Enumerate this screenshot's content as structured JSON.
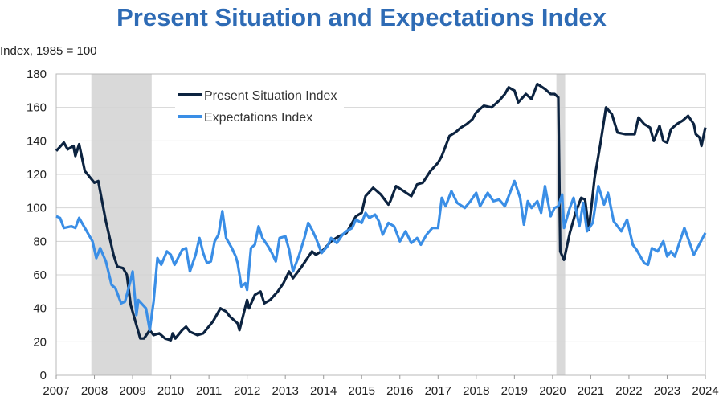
{
  "chart_data": {
    "type": "line",
    "title": "Present Situation and Expectations Index",
    "ylabel": "Index, 1985 = 100",
    "xlabel": "",
    "ylim": [
      0,
      180
    ],
    "xlim": [
      2007,
      2024
    ],
    "yticks": [
      "0",
      "20",
      "40",
      "60",
      "80",
      "100",
      "120",
      "140",
      "160",
      "180"
    ],
    "xticks": [
      "2007",
      "2008",
      "2009",
      "2010",
      "2011",
      "2012",
      "2013",
      "2014",
      "2015",
      "2016",
      "2017",
      "2018",
      "2019",
      "2020",
      "2021",
      "2022",
      "2023",
      "2024"
    ],
    "grid": true,
    "legend_position": "top-left",
    "recessions": [
      [
        2007.92,
        2009.5
      ],
      [
        2020.1,
        2020.33
      ]
    ],
    "series": [
      {
        "name": "Present Situation Index",
        "color": "#0c2340",
        "points": [
          [
            2007.0,
            134
          ],
          [
            2007.2,
            139
          ],
          [
            2007.3,
            135
          ],
          [
            2007.45,
            137
          ],
          [
            2007.5,
            131
          ],
          [
            2007.6,
            138
          ],
          [
            2007.75,
            122
          ],
          [
            2008.0,
            115
          ],
          [
            2008.1,
            116
          ],
          [
            2008.3,
            92
          ],
          [
            2008.5,
            72
          ],
          [
            2008.6,
            65
          ],
          [
            2008.75,
            64
          ],
          [
            2008.85,
            60
          ],
          [
            2008.95,
            42
          ],
          [
            2009.1,
            30
          ],
          [
            2009.2,
            22
          ],
          [
            2009.3,
            22
          ],
          [
            2009.45,
            27
          ],
          [
            2009.55,
            24
          ],
          [
            2009.7,
            25
          ],
          [
            2009.85,
            22
          ],
          [
            2010.0,
            21
          ],
          [
            2010.05,
            25
          ],
          [
            2010.12,
            22
          ],
          [
            2010.3,
            27
          ],
          [
            2010.4,
            29
          ],
          [
            2010.5,
            26
          ],
          [
            2010.7,
            24
          ],
          [
            2010.85,
            25
          ],
          [
            2011.1,
            32
          ],
          [
            2011.3,
            40
          ],
          [
            2011.45,
            38
          ],
          [
            2011.55,
            35
          ],
          [
            2011.75,
            31
          ],
          [
            2011.8,
            27
          ],
          [
            2012.0,
            45
          ],
          [
            2012.05,
            40
          ],
          [
            2012.2,
            48
          ],
          [
            2012.35,
            50
          ],
          [
            2012.45,
            43
          ],
          [
            2012.6,
            45
          ],
          [
            2012.8,
            50
          ],
          [
            2012.95,
            55
          ],
          [
            2013.1,
            62
          ],
          [
            2013.2,
            58
          ],
          [
            2013.4,
            64
          ],
          [
            2013.7,
            74
          ],
          [
            2013.8,
            72
          ],
          [
            2014.0,
            75
          ],
          [
            2014.2,
            80
          ],
          [
            2014.4,
            83
          ],
          [
            2014.6,
            85
          ],
          [
            2014.85,
            95
          ],
          [
            2015.0,
            97
          ],
          [
            2015.1,
            107
          ],
          [
            2015.3,
            112
          ],
          [
            2015.5,
            108
          ],
          [
            2015.7,
            102
          ],
          [
            2015.75,
            104
          ],
          [
            2015.9,
            113
          ],
          [
            2016.1,
            110
          ],
          [
            2016.3,
            107
          ],
          [
            2016.45,
            114
          ],
          [
            2016.6,
            115
          ],
          [
            2016.8,
            122
          ],
          [
            2017.0,
            127
          ],
          [
            2017.1,
            131
          ],
          [
            2017.3,
            143
          ],
          [
            2017.45,
            145
          ],
          [
            2017.6,
            148
          ],
          [
            2017.75,
            150
          ],
          [
            2017.9,
            153
          ],
          [
            2018.0,
            157
          ],
          [
            2018.2,
            161
          ],
          [
            2018.4,
            160
          ],
          [
            2018.6,
            164
          ],
          [
            2018.75,
            168
          ],
          [
            2018.85,
            172
          ],
          [
            2019.0,
            170
          ],
          [
            2019.1,
            163
          ],
          [
            2019.3,
            168
          ],
          [
            2019.45,
            165
          ],
          [
            2019.6,
            174
          ],
          [
            2019.8,
            171
          ],
          [
            2019.95,
            168
          ],
          [
            2020.05,
            168
          ],
          [
            2020.15,
            166
          ],
          [
            2020.2,
            74
          ],
          [
            2020.3,
            69
          ],
          [
            2020.45,
            85
          ],
          [
            2020.6,
            97
          ],
          [
            2020.75,
            106
          ],
          [
            2020.85,
            105
          ],
          [
            2020.95,
            87
          ],
          [
            2021.1,
            118
          ],
          [
            2021.25,
            138
          ],
          [
            2021.4,
            160
          ],
          [
            2021.55,
            156
          ],
          [
            2021.7,
            145
          ],
          [
            2021.9,
            144
          ],
          [
            2022.15,
            144
          ],
          [
            2022.25,
            154
          ],
          [
            2022.4,
            150
          ],
          [
            2022.55,
            148
          ],
          [
            2022.65,
            140
          ],
          [
            2022.8,
            149
          ],
          [
            2022.9,
            140
          ],
          [
            2023.0,
            139
          ],
          [
            2023.1,
            147
          ],
          [
            2023.25,
            150
          ],
          [
            2023.4,
            152
          ],
          [
            2023.55,
            155
          ],
          [
            2023.7,
            150
          ],
          [
            2023.75,
            144
          ],
          [
            2023.85,
            142
          ],
          [
            2023.9,
            137
          ],
          [
            2024.0,
            148
          ]
        ]
      },
      {
        "name": "Expectations Index",
        "color": "#3a8ee6",
        "points": [
          [
            2007.0,
            95
          ],
          [
            2007.1,
            94
          ],
          [
            2007.2,
            88
          ],
          [
            2007.4,
            89
          ],
          [
            2007.5,
            88
          ],
          [
            2007.6,
            94
          ],
          [
            2007.8,
            86
          ],
          [
            2007.95,
            80
          ],
          [
            2008.05,
            70
          ],
          [
            2008.15,
            76
          ],
          [
            2008.3,
            68
          ],
          [
            2008.45,
            54
          ],
          [
            2008.55,
            52
          ],
          [
            2008.7,
            43
          ],
          [
            2008.8,
            44
          ],
          [
            2008.95,
            57
          ],
          [
            2009.0,
            62
          ],
          [
            2009.1,
            36
          ],
          [
            2009.15,
            45
          ],
          [
            2009.35,
            40
          ],
          [
            2009.45,
            27
          ],
          [
            2009.55,
            44
          ],
          [
            2009.65,
            70
          ],
          [
            2009.75,
            66
          ],
          [
            2009.9,
            74
          ],
          [
            2010.0,
            72
          ],
          [
            2010.1,
            66
          ],
          [
            2010.3,
            75
          ],
          [
            2010.4,
            76
          ],
          [
            2010.5,
            62
          ],
          [
            2010.65,
            72
          ],
          [
            2010.75,
            82
          ],
          [
            2010.85,
            73
          ],
          [
            2010.95,
            67
          ],
          [
            2011.05,
            68
          ],
          [
            2011.15,
            80
          ],
          [
            2011.25,
            84
          ],
          [
            2011.35,
            98
          ],
          [
            2011.45,
            82
          ],
          [
            2011.6,
            76
          ],
          [
            2011.7,
            71
          ],
          [
            2011.75,
            67
          ],
          [
            2011.85,
            53
          ],
          [
            2011.95,
            55
          ],
          [
            2012.0,
            51
          ],
          [
            2012.1,
            76
          ],
          [
            2012.2,
            78
          ],
          [
            2012.3,
            89
          ],
          [
            2012.4,
            82
          ],
          [
            2012.55,
            77
          ],
          [
            2012.65,
            73
          ],
          [
            2012.75,
            68
          ],
          [
            2012.85,
            82
          ],
          [
            2013.0,
            83
          ],
          [
            2013.1,
            75
          ],
          [
            2013.2,
            62
          ],
          [
            2013.35,
            71
          ],
          [
            2013.5,
            82
          ],
          [
            2013.6,
            91
          ],
          [
            2013.7,
            87
          ],
          [
            2013.8,
            82
          ],
          [
            2013.95,
            73
          ],
          [
            2014.1,
            77
          ],
          [
            2014.2,
            82
          ],
          [
            2014.35,
            79
          ],
          [
            2014.5,
            84
          ],
          [
            2014.6,
            86
          ],
          [
            2014.75,
            88
          ],
          [
            2014.85,
            93
          ],
          [
            2015.0,
            91
          ],
          [
            2015.1,
            97
          ],
          [
            2015.2,
            94
          ],
          [
            2015.35,
            96
          ],
          [
            2015.45,
            92
          ],
          [
            2015.55,
            84
          ],
          [
            2015.7,
            91
          ],
          [
            2015.85,
            89
          ],
          [
            2016.0,
            80
          ],
          [
            2016.15,
            86
          ],
          [
            2016.3,
            79
          ],
          [
            2016.45,
            82
          ],
          [
            2016.55,
            78
          ],
          [
            2016.7,
            84
          ],
          [
            2016.85,
            88
          ],
          [
            2017.0,
            88
          ],
          [
            2017.1,
            106
          ],
          [
            2017.2,
            101
          ],
          [
            2017.35,
            110
          ],
          [
            2017.5,
            103
          ],
          [
            2017.7,
            100
          ],
          [
            2017.85,
            104
          ],
          [
            2018.0,
            109
          ],
          [
            2018.1,
            101
          ],
          [
            2018.3,
            109
          ],
          [
            2018.45,
            104
          ],
          [
            2018.6,
            105
          ],
          [
            2018.75,
            101
          ],
          [
            2018.9,
            110
          ],
          [
            2019.0,
            116
          ],
          [
            2019.15,
            106
          ],
          [
            2019.25,
            90
          ],
          [
            2019.35,
            104
          ],
          [
            2019.45,
            100
          ],
          [
            2019.6,
            104
          ],
          [
            2019.7,
            97
          ],
          [
            2019.8,
            113
          ],
          [
            2019.95,
            95
          ],
          [
            2020.05,
            100
          ],
          [
            2020.15,
            101
          ],
          [
            2020.25,
            108
          ],
          [
            2020.3,
            88
          ],
          [
            2020.45,
            100
          ],
          [
            2020.55,
            106
          ],
          [
            2020.7,
            89
          ],
          [
            2020.8,
            103
          ],
          [
            2020.9,
            86
          ],
          [
            2021.05,
            91
          ],
          [
            2021.2,
            113
          ],
          [
            2021.35,
            102
          ],
          [
            2021.45,
            109
          ],
          [
            2021.6,
            92
          ],
          [
            2021.8,
            86
          ],
          [
            2021.95,
            93
          ],
          [
            2022.1,
            78
          ],
          [
            2022.2,
            75
          ],
          [
            2022.4,
            67
          ],
          [
            2022.5,
            66
          ],
          [
            2022.6,
            76
          ],
          [
            2022.75,
            74
          ],
          [
            2022.9,
            80
          ],
          [
            2023.0,
            71
          ],
          [
            2023.1,
            74
          ],
          [
            2023.2,
            71
          ],
          [
            2023.45,
            88
          ],
          [
            2023.7,
            72
          ],
          [
            2024.0,
            85
          ]
        ]
      }
    ]
  }
}
